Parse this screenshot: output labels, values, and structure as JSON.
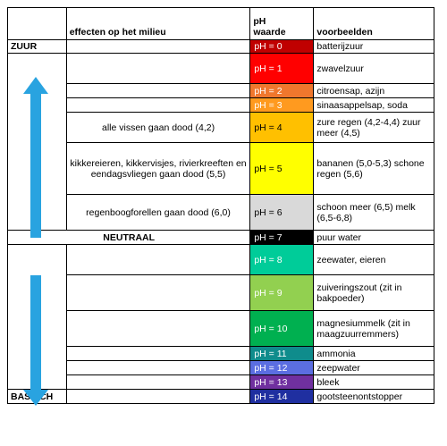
{
  "header": {
    "effects": "effecten op het milieu",
    "ph_line1": "pH",
    "ph_line2": "waarde",
    "examples": "voorbeelden"
  },
  "zones": {
    "acid": "ZUUR",
    "neutral": "NEUTRAAL",
    "base": "BASISCH"
  },
  "arrow_color": "#29a3e0",
  "rows": [
    {
      "ph": "pH = 0",
      "color": "#c00000",
      "text_color": "#ffffff",
      "effect": "",
      "example": "batterijzuur"
    },
    {
      "ph": "pH = 1",
      "color": "#ff0000",
      "text_color": "#ffffff",
      "effect": "",
      "example": "zwavelzuur"
    },
    {
      "ph": "pH = 2",
      "color": "#f0772d",
      "text_color": "#ffffff",
      "effect": "",
      "example": "citroensap, azijn"
    },
    {
      "ph": "pH = 3",
      "color": "#ff9a1f",
      "text_color": "#ffffff",
      "effect": "",
      "example": "sinaasappelsap, soda"
    },
    {
      "ph": "pH = 4",
      "color": "#ffc000",
      "text_color": "#000000",
      "effect": "alle vissen gaan dood (4,2)",
      "example": "zure regen (4,2-4,4) zuur meer (4,5)"
    },
    {
      "ph": "pH = 5",
      "color": "#ffff00",
      "text_color": "#000000",
      "effect": "kikkereieren, kikkervisjes, rivierkreeften en eendagsvliegen gaan dood (5,5)",
      "example": "bananen (5,0-5,3) schone regen (5,6)"
    },
    {
      "ph": "pH = 6",
      "color": "#d9d9d9",
      "text_color": "#000000",
      "effect": "regenboogforellen gaan dood (6,0)",
      "example": "schoon meer (6,5) melk (6,5-6,8)"
    },
    {
      "ph": "pH = 7",
      "color": "#000000",
      "text_color": "#ffffff",
      "effect": "",
      "example": "puur water"
    },
    {
      "ph": "pH = 8",
      "color": "#00cc99",
      "text_color": "#ffffff",
      "effect": "",
      "example": "zeewater, eieren"
    },
    {
      "ph": "pH = 9",
      "color": "#92d050",
      "text_color": "#ffffff",
      "effect": "",
      "example": "zuiveringszout (zit in bakpoeder)"
    },
    {
      "ph": "pH = 10",
      "color": "#00b050",
      "text_color": "#ffffff",
      "effect": "",
      "example": "magnesiummelk (zit in maagzuurremmers)"
    },
    {
      "ph": "pH = 11",
      "color": "#0f8c8c",
      "text_color": "#ffffff",
      "effect": "",
      "example": "ammonia"
    },
    {
      "ph": "pH = 12",
      "color": "#5b6ee1",
      "text_color": "#ffffff",
      "effect": "",
      "example": "zeepwater"
    },
    {
      "ph": "pH = 13",
      "color": "#7030a0",
      "text_color": "#ffffff",
      "effect": "",
      "example": "bleek"
    },
    {
      "ph": "pH = 14",
      "color": "#1f2fa0",
      "text_color": "#ffffff",
      "effect": "",
      "example": "gootsteenontstopper"
    }
  ]
}
